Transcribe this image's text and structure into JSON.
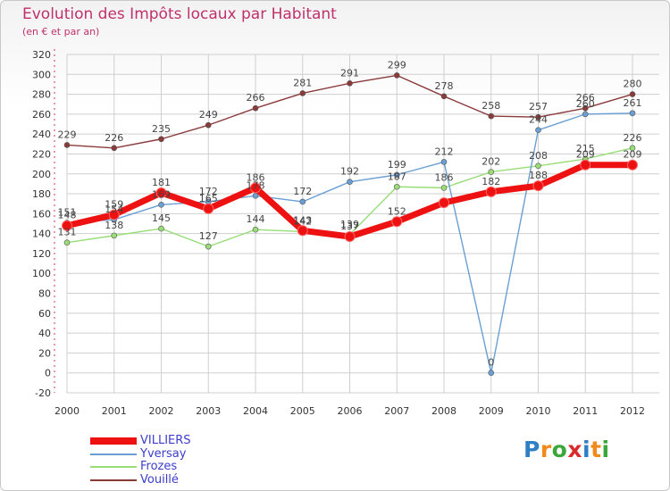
{
  "title": "Evolution des Impôts locaux par Habitant",
  "subtitle": "(en € et par an)",
  "brand": {
    "text": "Proxiti",
    "letter_colors": [
      "#2f7fc4",
      "#f08a1c",
      "#3aa73a",
      "#d82b2b",
      "#2f7fc4",
      "#f08a1c",
      "#3aa73a"
    ]
  },
  "colors": {
    "villiers": "#ee1111",
    "yversay": "#6a9fd4",
    "frozes": "#99dd77",
    "vouille": "#8b3a3a",
    "grid": "#cfcfcf",
    "axis_text": "#333333"
  },
  "chart_data": {
    "type": "line",
    "title": "Evolution des Impôts locaux par Habitant",
    "subtitle": "(en € et par an)",
    "xlabel": "",
    "ylabel": "",
    "categories": [
      "2000",
      "2001",
      "2002",
      "2003",
      "2004",
      "2005",
      "2006",
      "2007",
      "2008",
      "2009",
      "2010",
      "2011",
      "2012"
    ],
    "ylim": [
      -20,
      320
    ],
    "yticks": [
      -20,
      0,
      20,
      40,
      60,
      80,
      100,
      120,
      140,
      160,
      180,
      200,
      220,
      240,
      260,
      280,
      300,
      320
    ],
    "grid": true,
    "legend_position": "bottom-left",
    "series": [
      {
        "key": "villiers",
        "name": "VILLIERS",
        "values": [
          148,
          159,
          181,
          165,
          186,
          143,
          137,
          152,
          171,
          182,
          188,
          209,
          209
        ],
        "labels": [
          "148",
          "159",
          "181",
          "165",
          "186",
          "143",
          "137",
          "152",
          "",
          "182",
          "188",
          "209",
          "209"
        ]
      },
      {
        "key": "yversay",
        "name": "Yversay",
        "values": [
          151,
          154,
          169,
          172,
          178,
          172,
          192,
          199,
          212,
          0,
          244,
          260,
          261
        ],
        "labels": [
          "151",
          "154",
          "169",
          "172",
          "178",
          "172",
          "192",
          "199",
          "212",
          "0",
          "244",
          "260",
          "261"
        ]
      },
      {
        "key": "frozes",
        "name": "Frozes",
        "values": [
          131,
          138,
          145,
          127,
          144,
          142,
          139,
          187,
          186,
          202,
          208,
          215,
          226
        ],
        "labels": [
          "131",
          "138",
          "145",
          "127",
          "144",
          "142",
          "139",
          "187",
          "186",
          "202",
          "208",
          "215",
          "226"
        ]
      },
      {
        "key": "vouille",
        "name": "Vouillé",
        "values": [
          229,
          226,
          235,
          249,
          266,
          281,
          291,
          299,
          278,
          258,
          257,
          266,
          280
        ],
        "labels": [
          "229",
          "226",
          "235",
          "249",
          "266",
          "281",
          "291",
          "299",
          "278",
          "258",
          "257",
          "266",
          "280"
        ]
      }
    ]
  }
}
